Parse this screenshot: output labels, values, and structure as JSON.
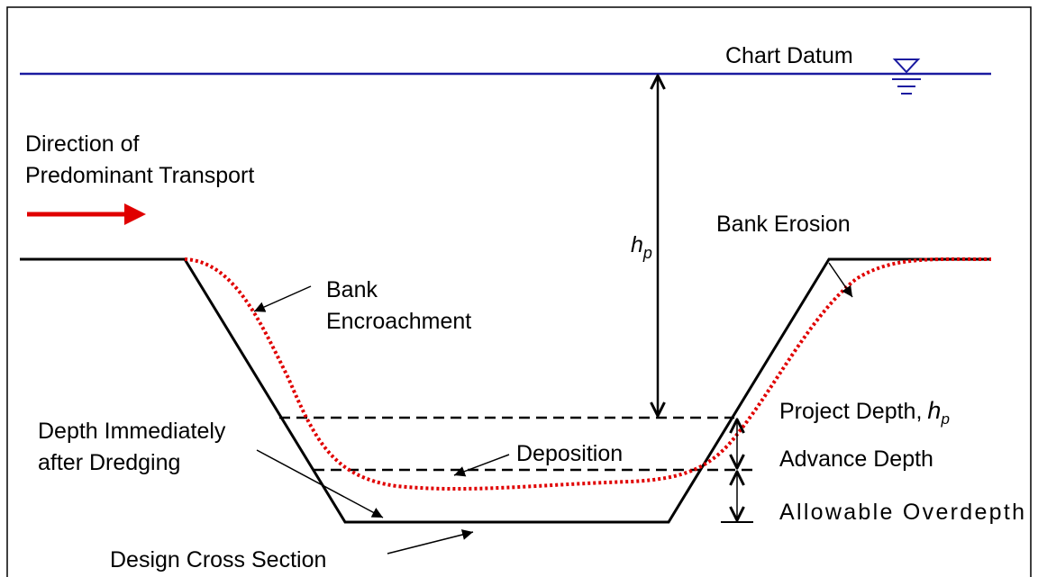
{
  "labels": {
    "chart_datum": "Chart Datum",
    "direction_line1": "Direction of",
    "direction_line2": "Predominant Transport",
    "bank_erosion": "Bank Erosion",
    "hp_symbol": "h",
    "hp_subscript": "p",
    "bank_line1": "Bank",
    "bank_line2": "Encroachment",
    "project_depth": "Project Depth,",
    "project_depth_symbol": "h",
    "project_depth_subscript": "p",
    "depth_line1": "Depth Immediately",
    "depth_line2": "after Dredging",
    "deposition": "Deposition",
    "advance_depth": "Advance Depth",
    "allowable_overdepth": "Allowable Overdepth",
    "design_cross_section": "Design Cross Section"
  }
}
